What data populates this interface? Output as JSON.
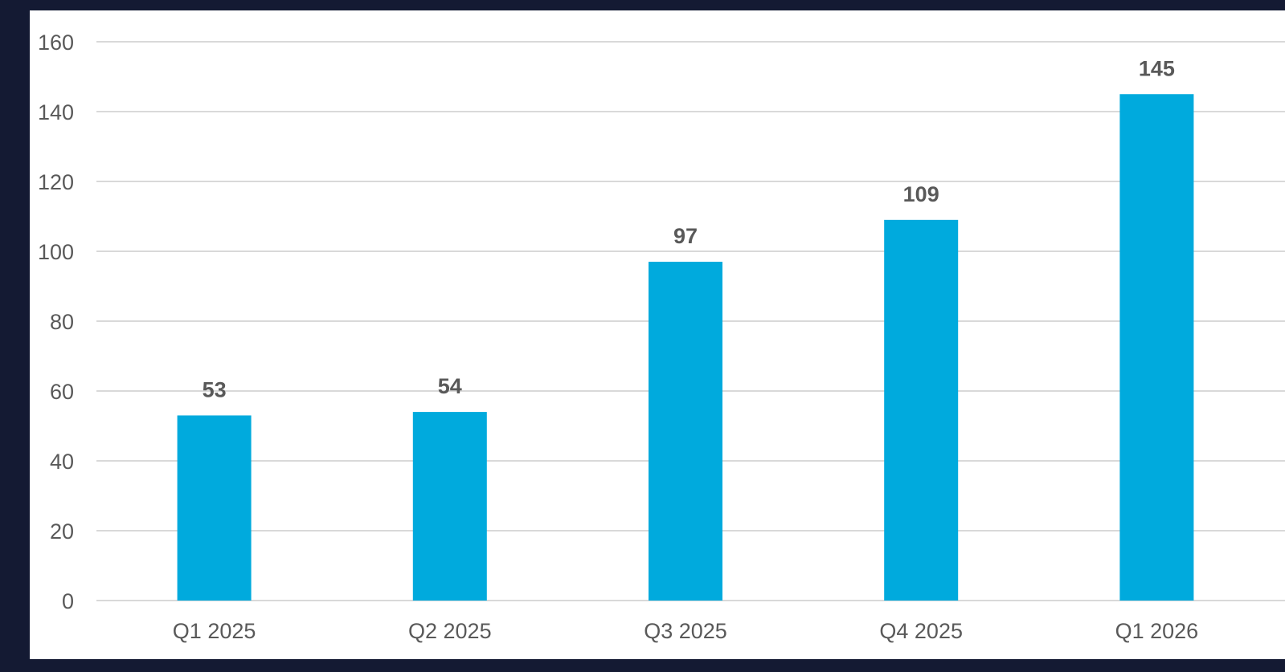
{
  "chart_data": {
    "type": "bar",
    "categories": [
      "Q1 2025",
      "Q2 2025",
      "Q3 2025",
      "Q4 2025",
      "Q1 2026"
    ],
    "values": [
      53,
      54,
      97,
      109,
      145
    ],
    "data_labels": [
      "53",
      "54",
      "97",
      "109",
      "145"
    ],
    "y_ticks": [
      "0",
      "20",
      "40",
      "60",
      "80",
      "100",
      "120",
      "140",
      "160"
    ],
    "ylim": [
      0,
      160
    ],
    "title": "",
    "xlabel": "",
    "ylabel": "",
    "grid": true,
    "legend": "none",
    "colors": {
      "bar": "#00aadd",
      "background": "#141a33",
      "panel": "#ffffff",
      "gridline": "#d9d9d9",
      "text": "#595959"
    }
  }
}
